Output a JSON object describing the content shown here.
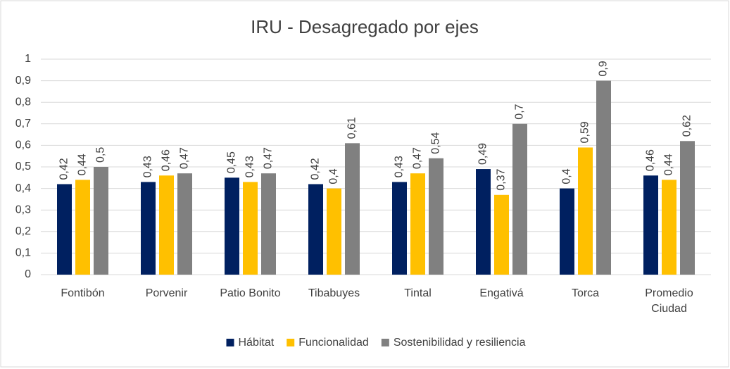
{
  "chart_data": {
    "type": "bar",
    "title": "IRU - Desagregado por ejes",
    "categories": [
      "Fontibón",
      "Porvenir",
      "Patio Bonito",
      "Tibabuyes",
      "Tintal",
      "Engativá",
      "Torca",
      "Promedio Ciudad"
    ],
    "series": [
      {
        "name": "Hábitat",
        "color": "#002060",
        "values": [
          0.42,
          0.43,
          0.45,
          0.42,
          0.43,
          0.49,
          0.4,
          0.46
        ],
        "value_labels": [
          "0,42",
          "0,43",
          "0,45",
          "0,42",
          "0,43",
          "0,49",
          "0,4",
          "0,46"
        ]
      },
      {
        "name": "Funcionalidad",
        "color": "#FFC000",
        "values": [
          0.44,
          0.46,
          0.43,
          0.4,
          0.47,
          0.37,
          0.59,
          0.44
        ],
        "value_labels": [
          "0,44",
          "0,46",
          "0,43",
          "0,4",
          "0,47",
          "0,37",
          "0,59",
          "0,44"
        ]
      },
      {
        "name": "Sostenibilidad y resiliencia",
        "color": "#808080",
        "values": [
          0.5,
          0.47,
          0.47,
          0.61,
          0.54,
          0.7,
          0.9,
          0.62
        ],
        "value_labels": [
          "0,5",
          "0,47",
          "0,47",
          "0,61",
          "0,54",
          "0,7",
          "0,9",
          "0,62"
        ]
      }
    ],
    "ylim": [
      0,
      1
    ],
    "yticks": [
      0,
      {
        "value": 0.1,
        "label": "0,1"
      },
      {
        "value": 0.2,
        "label": "0,2"
      },
      {
        "value": 0.3,
        "label": "0,3"
      },
      {
        "value": 0.4,
        "label": "0,4"
      },
      {
        "value": 0.5,
        "label": "0,5"
      },
      {
        "value": 0.6,
        "label": "0,6"
      },
      {
        "value": 0.7,
        "label": "0,7"
      },
      {
        "value": 0.8,
        "label": "0,8"
      },
      {
        "value": 0.9,
        "label": "0,9"
      },
      1
    ],
    "grid": true,
    "legend": "bottom"
  }
}
